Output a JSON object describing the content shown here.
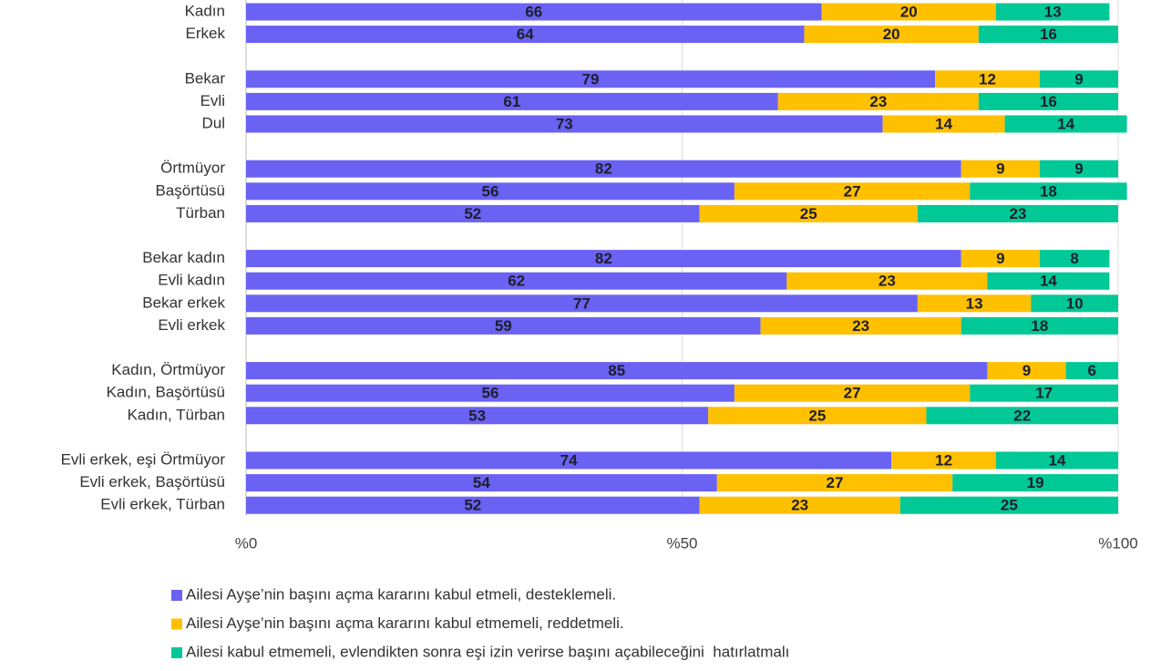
{
  "chart_data": {
    "type": "stacked_barh",
    "categories": [
      "Kadın",
      "Erkek",
      null,
      "Bekar",
      "Evli",
      "Dul",
      null,
      "Örtmüyor",
      "Başörtüsü",
      "Türban",
      null,
      "Bekar kadın",
      "Evli kadın",
      "Bekar erkek",
      "Evli erkek",
      null,
      "Kadın, Örtmüyor",
      "Kadın, Başörtüsü",
      "Kadın, Türban",
      null,
      "Evli erkek, eşi Örtmüyor",
      "Evli erkek, Başörtüsü",
      "Evli erkek, Türban"
    ],
    "series": [
      {
        "name": "Ailesi Ayşe’nin başını açma kararını kabul etmeli, desteklemeli.",
        "color": "#6a62f2",
        "values": [
          66,
          64,
          null,
          79,
          61,
          73,
          null,
          82,
          56,
          52,
          null,
          82,
          62,
          77,
          59,
          null,
          85,
          56,
          53,
          null,
          74,
          54,
          52
        ]
      },
      {
        "name": "Ailesi Ayşe’nin başını açma kararını kabul etmemeli, reddetmeli.",
        "color": "#ffc000",
        "values": [
          20,
          20,
          null,
          12,
          23,
          14,
          null,
          9,
          27,
          25,
          null,
          9,
          23,
          13,
          23,
          null,
          9,
          27,
          25,
          null,
          12,
          27,
          23
        ]
      },
      {
        "name": "Ailesi kabul etmemeli, evlendikten sonra eşi izin verirse başını açabileceğini  hatırlatmalı",
        "color": "#00c896",
        "values": [
          13,
          16,
          null,
          9,
          16,
          14,
          null,
          9,
          18,
          23,
          null,
          8,
          14,
          10,
          18,
          null,
          6,
          17,
          22,
          null,
          14,
          19,
          25
        ]
      }
    ],
    "xlim": [
      0,
      100
    ],
    "xticks": [
      {
        "value": 0,
        "label": "%0"
      },
      {
        "value": 50,
        "label": "%50"
      },
      {
        "value": 100,
        "label": "%100"
      }
    ],
    "grid": true
  }
}
